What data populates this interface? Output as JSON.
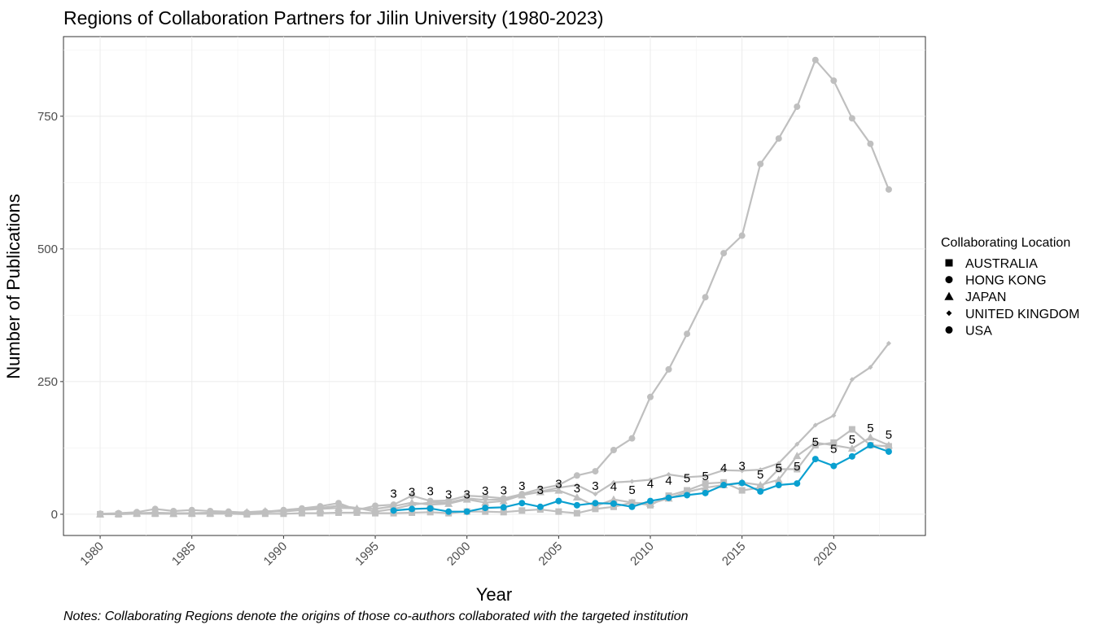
{
  "chart_data": {
    "type": "line",
    "title": "Regions of Collaboration Partners for Jilin University (1980-2023)",
    "xlabel": "Year",
    "ylabel": "Number of Publications",
    "note": "Notes: Collaborating Regions denote the origins of those co-authors collaborated with the targeted institution",
    "xlim": [
      1978,
      2025
    ],
    "ylim": [
      -40,
      900
    ],
    "x_ticks": [
      1980,
      1985,
      1990,
      1995,
      2000,
      2005,
      2010,
      2015,
      2020
    ],
    "y_ticks": [
      0,
      250,
      500,
      750
    ],
    "grid": true,
    "legend": {
      "title": "Collaborating Location",
      "placement": "right",
      "entries": [
        {
          "label": "AUSTRALIA",
          "shape": "square"
        },
        {
          "label": "HONG KONG",
          "shape": "circle"
        },
        {
          "label": "JAPAN",
          "shape": "triangle"
        },
        {
          "label": "UNITED KINGDOM",
          "shape": "diamond"
        },
        {
          "label": "USA",
          "shape": "circle"
        }
      ]
    },
    "colors": {
      "highlight": "#0aa0d0",
      "other": "#bfbfbf"
    },
    "highlighted_series": "HONG KONG",
    "series": [
      {
        "name": "USA",
        "shape": "circle",
        "x": [
          1980,
          1981,
          1982,
          1983,
          1984,
          1985,
          1986,
          1987,
          1988,
          1989,
          1990,
          1991,
          1992,
          1993,
          1994,
          1995,
          1996,
          1997,
          1998,
          1999,
          2000,
          2001,
          2002,
          2003,
          2004,
          2005,
          2006,
          2007,
          2008,
          2009,
          2010,
          2011,
          2012,
          2013,
          2014,
          2015,
          2016,
          2017,
          2018,
          2019,
          2020,
          2021,
          2022,
          2023
        ],
        "y": [
          1,
          2,
          4,
          10,
          6,
          8,
          6,
          5,
          3,
          5,
          8,
          11,
          15,
          21,
          8,
          16,
          18,
          35,
          25,
          26,
          35,
          33,
          30,
          38,
          48,
          55,
          73,
          81,
          121,
          143,
          221,
          273,
          340,
          409,
          492,
          525,
          660,
          708,
          768,
          856,
          817,
          746,
          698,
          612
        ]
      },
      {
        "name": "UNITED KINGDOM",
        "shape": "diamond",
        "x": [
          1980,
          1981,
          1982,
          1983,
          1984,
          1985,
          1986,
          1987,
          1988,
          1989,
          1990,
          1991,
          1992,
          1993,
          1994,
          1995,
          1996,
          1997,
          1998,
          1999,
          2000,
          2001,
          2002,
          2003,
          2004,
          2005,
          2006,
          2007,
          2008,
          2009,
          2010,
          2011,
          2012,
          2013,
          2014,
          2015,
          2016,
          2017,
          2018,
          2019,
          2020,
          2021,
          2022,
          2023
        ],
        "y": [
          0,
          1,
          2,
          3,
          2,
          2,
          3,
          4,
          2,
          4,
          6,
          9,
          12,
          16,
          12,
          5,
          10,
          18,
          22,
          22,
          30,
          27,
          28,
          36,
          43,
          50,
          55,
          38,
          60,
          62,
          65,
          75,
          70,
          72,
          83,
          82,
          84,
          96,
          132,
          168,
          186,
          254,
          277,
          322
        ]
      },
      {
        "name": "JAPAN",
        "shape": "triangle",
        "x": [
          1980,
          1981,
          1982,
          1983,
          1984,
          1985,
          1986,
          1987,
          1988,
          1989,
          1990,
          1991,
          1992,
          1993,
          1994,
          1995,
          1996,
          1997,
          1998,
          1999,
          2000,
          2001,
          2002,
          2003,
          2004,
          2005,
          2006,
          2007,
          2008,
          2009,
          2010,
          2011,
          2012,
          2013,
          2014,
          2015,
          2016,
          2017,
          2018,
          2019,
          2020,
          2021,
          2022,
          2023
        ],
        "y": [
          0,
          1,
          2,
          2,
          1,
          2,
          2,
          3,
          4,
          6,
          5,
          8,
          10,
          12,
          11,
          10,
          15,
          22,
          18,
          20,
          28,
          22,
          25,
          36,
          42,
          45,
          32,
          15,
          28,
          22,
          20,
          30,
          42,
          50,
          55,
          60,
          55,
          65,
          110,
          135,
          130,
          124,
          145,
          130
        ]
      },
      {
        "name": "AUSTRALIA",
        "shape": "square",
        "x": [
          1980,
          1981,
          1982,
          1983,
          1984,
          1985,
          1986,
          1987,
          1988,
          1989,
          1990,
          1991,
          1992,
          1993,
          1994,
          1995,
          1996,
          1997,
          1998,
          1999,
          2000,
          2001,
          2002,
          2003,
          2004,
          2005,
          2006,
          2007,
          2008,
          2009,
          2010,
          2011,
          2012,
          2013,
          2014,
          2015,
          2016,
          2017,
          2018,
          2019,
          2020,
          2021,
          2022,
          2023
        ],
        "y": [
          0,
          0,
          1,
          1,
          1,
          1,
          1,
          1,
          0,
          1,
          1,
          2,
          2,
          3,
          3,
          2,
          2,
          3,
          4,
          2,
          5,
          5,
          4,
          7,
          9,
          5,
          2,
          10,
          14,
          22,
          17,
          35,
          45,
          58,
          60,
          45,
          50,
          85,
          85,
          130,
          135,
          160,
          130,
          128
        ]
      },
      {
        "name": "HONG KONG",
        "shape": "circle",
        "x": [
          1996,
          1997,
          1998,
          1999,
          2000,
          2001,
          2002,
          2003,
          2004,
          2005,
          2006,
          2007,
          2008,
          2009,
          2010,
          2011,
          2012,
          2013,
          2014,
          2015,
          2016,
          2017,
          2018,
          2019,
          2020,
          2021,
          2022,
          2023
        ],
        "y": [
          7,
          10,
          11,
          5,
          5,
          12,
          13,
          21,
          14,
          25,
          17,
          21,
          20,
          14,
          25,
          31,
          36,
          40,
          55,
          59,
          43,
          55,
          58,
          104,
          91,
          109,
          130,
          118
        ]
      }
    ],
    "rank_labels": [
      {
        "x": 1996,
        "y": 7,
        "label": "3"
      },
      {
        "x": 1997,
        "y": 10,
        "label": "3"
      },
      {
        "x": 1998,
        "y": 11,
        "label": "3"
      },
      {
        "x": 1999,
        "y": 5,
        "label": "3"
      },
      {
        "x": 2000,
        "y": 5,
        "label": "3"
      },
      {
        "x": 2001,
        "y": 12,
        "label": "3"
      },
      {
        "x": 2002,
        "y": 13,
        "label": "3"
      },
      {
        "x": 2003,
        "y": 21,
        "label": "3"
      },
      {
        "x": 2004,
        "y": 14,
        "label": "3"
      },
      {
        "x": 2005,
        "y": 25,
        "label": "3"
      },
      {
        "x": 2006,
        "y": 17,
        "label": "3"
      },
      {
        "x": 2007,
        "y": 21,
        "label": "3"
      },
      {
        "x": 2008,
        "y": 20,
        "label": "4"
      },
      {
        "x": 2009,
        "y": 14,
        "label": "5"
      },
      {
        "x": 2010,
        "y": 25,
        "label": "4"
      },
      {
        "x": 2011,
        "y": 31,
        "label": "4"
      },
      {
        "x": 2012,
        "y": 36,
        "label": "5"
      },
      {
        "x": 2013,
        "y": 40,
        "label": "5"
      },
      {
        "x": 2014,
        "y": 55,
        "label": "4"
      },
      {
        "x": 2015,
        "y": 59,
        "label": "3"
      },
      {
        "x": 2016,
        "y": 43,
        "label": "5"
      },
      {
        "x": 2017,
        "y": 55,
        "label": "5"
      },
      {
        "x": 2018,
        "y": 58,
        "label": "5"
      },
      {
        "x": 2019,
        "y": 104,
        "label": "5"
      },
      {
        "x": 2020,
        "y": 91,
        "label": "5"
      },
      {
        "x": 2021,
        "y": 109,
        "label": "5"
      },
      {
        "x": 2022,
        "y": 130,
        "label": "5"
      },
      {
        "x": 2023,
        "y": 118,
        "label": "5"
      }
    ]
  }
}
